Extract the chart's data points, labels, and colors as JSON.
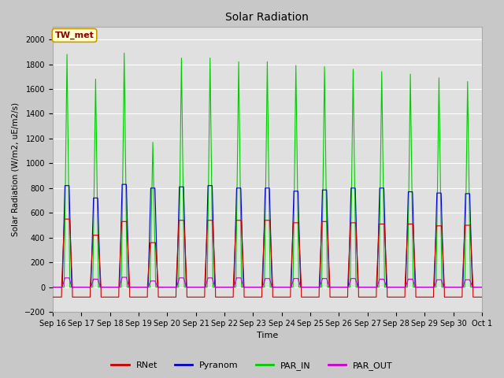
{
  "title": "Solar Radiation",
  "xlabel": "Time",
  "ylabel": "Solar Radiation (W/m2, uE/m2/s)",
  "ylim": [
    -200,
    2100
  ],
  "yticks": [
    -200,
    0,
    200,
    400,
    600,
    800,
    1000,
    1200,
    1400,
    1600,
    1800,
    2000
  ],
  "site_label": "TW_met",
  "fig_facecolor": "#c8c8c8",
  "ax_facecolor": "#e0e0e0",
  "colors": {
    "RNet": "#cc0000",
    "Pyranom": "#0000cc",
    "PAR_IN": "#00cc00",
    "PAR_OUT": "#cc00cc"
  },
  "n_days": 15,
  "x_tick_labels": [
    "Sep 16",
    "Sep 17",
    "Sep 18",
    "Sep 19",
    "Sep 20",
    "Sep 21",
    "Sep 22",
    "Sep 23",
    "Sep 24",
    "Sep 25",
    "Sep 26",
    "Sep 27",
    "Sep 28",
    "Sep 29",
    "Sep 30",
    "Oct 1"
  ],
  "day_peaks": {
    "RNet": [
      550,
      420,
      530,
      360,
      540,
      540,
      540,
      540,
      520,
      530,
      520,
      510,
      510,
      495,
      500
    ],
    "Pyranom": [
      820,
      720,
      830,
      800,
      810,
      820,
      800,
      800,
      775,
      785,
      800,
      800,
      770,
      760,
      755
    ],
    "PAR_IN": [
      1880,
      1680,
      1890,
      1170,
      1850,
      1850,
      1820,
      1820,
      1790,
      1780,
      1760,
      1740,
      1720,
      1690,
      1660
    ],
    "PAR_OUT": [
      75,
      65,
      80,
      50,
      75,
      75,
      75,
      70,
      70,
      70,
      70,
      65,
      65,
      60,
      60
    ]
  },
  "rnet_night": -80,
  "pts_per_day": 288
}
